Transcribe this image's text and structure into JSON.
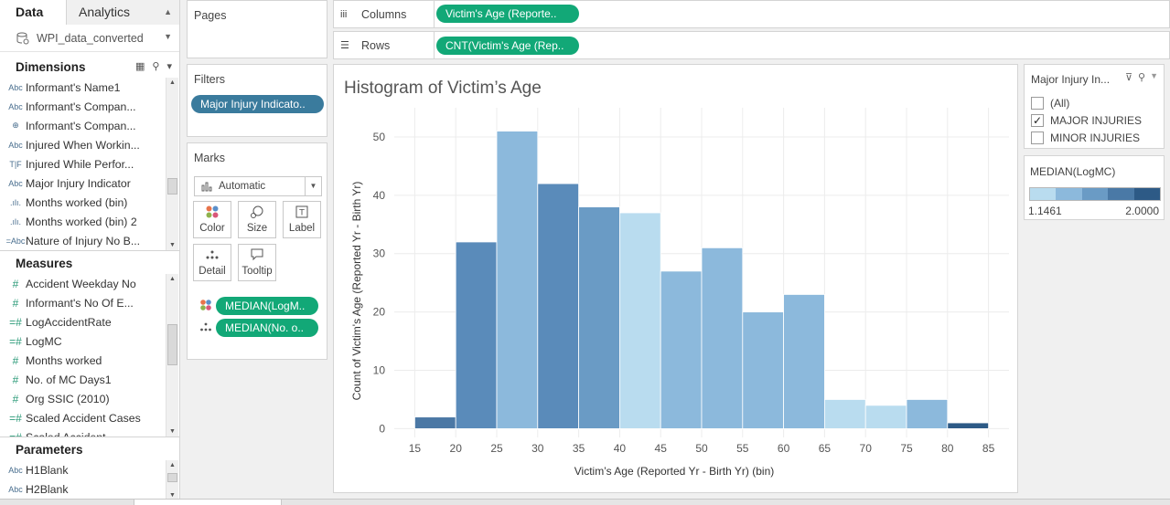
{
  "data_pane": {
    "tab_data": "Data",
    "tab_analytics": "Analytics",
    "datasource": "WPI_data_converted",
    "dimensions_header": "Dimensions",
    "dimensions": [
      {
        "type": "Abc",
        "label": "Informant's  Name1"
      },
      {
        "type": "Abc",
        "label": "Informant's Compan..."
      },
      {
        "type": "globe",
        "label": "Informant's Compan..."
      },
      {
        "type": "Abc",
        "label": "Injured When Workin..."
      },
      {
        "type": "T|F",
        "label": "Injured While Perfor..."
      },
      {
        "type": "Abc",
        "label": "Major Injury Indicator"
      },
      {
        "type": "bin",
        "label": "Months worked (bin)"
      },
      {
        "type": "bin",
        "label": "Months worked (bin) 2"
      },
      {
        "type": "=Abc",
        "label": "Nature of Injury No B..."
      }
    ],
    "measures_header": "Measures",
    "measures": [
      {
        "type": "#",
        "label": "Accident Weekday No"
      },
      {
        "type": "#",
        "label": "Informant's No Of E..."
      },
      {
        "type": "=#",
        "label": "LogAccidentRate"
      },
      {
        "type": "=#",
        "label": "LogMC"
      },
      {
        "type": "#",
        "label": "Months worked"
      },
      {
        "type": "#",
        "label": "No. of MC Days1"
      },
      {
        "type": "#",
        "label": "Org SSIC (2010)"
      },
      {
        "type": "=#",
        "label": "Scaled Accident Cases"
      },
      {
        "type": "=#",
        "label": "Scaled Accident..."
      }
    ],
    "parameters_header": "Parameters",
    "parameters": [
      {
        "type": "Abc",
        "label": "H1Blank"
      },
      {
        "type": "Abc",
        "label": "H2Blank"
      }
    ]
  },
  "pages": {
    "title": "Pages"
  },
  "filters": {
    "title": "Filters",
    "pill": "Major Injury Indicato.."
  },
  "marks": {
    "title": "Marks",
    "type": "Automatic",
    "buttons": {
      "color": "Color",
      "size": "Size",
      "label": "Label",
      "detail": "Detail",
      "tooltip": "Tooltip"
    },
    "pill_color": "MEDIAN(LogM..",
    "pill_detail": "MEDIAN(No. o.."
  },
  "columns": {
    "label": "Columns",
    "pill": "Victim's Age (Reporte.."
  },
  "rows": {
    "label": "Rows",
    "pill": "CNT(Victim's Age (Rep.."
  },
  "filter_card": {
    "title": "Major Injury In...",
    "options": [
      {
        "label": "(All)",
        "checked": false
      },
      {
        "label": "MAJOR INJURIES",
        "checked": true
      },
      {
        "label": "MINOR INJURIES",
        "checked": false
      }
    ]
  },
  "legend_card": {
    "title": "MEDIAN(LogMC)",
    "min_label": "1.1461",
    "max_label": "2.0000",
    "colors": [
      "#b9dcef",
      "#8cb9dc",
      "#6a9bc5",
      "#4a79a6",
      "#2d5a86"
    ]
  },
  "chart_data": {
    "type": "bar",
    "title": "Histogram of Victim’s Age",
    "xlabel": "Victim’s Age (Reported Yr - Birth Yr) (bin)",
    "ylabel": "Count of Victim's Age (Reported Yr - Birth Yr)",
    "x_ticks": [
      "15",
      "20",
      "25",
      "30",
      "35",
      "40",
      "45",
      "50",
      "55",
      "60",
      "65",
      "70",
      "75",
      "80",
      "85"
    ],
    "y_ticks": [
      "0",
      "10",
      "20",
      "30",
      "40",
      "50"
    ],
    "xlim": [
      12.5,
      87.5
    ],
    "ylim": [
      -1.5,
      55
    ],
    "bin_width": 5,
    "grid": true,
    "bins": [
      {
        "start": 15,
        "count": 2,
        "color": "#4b78a5"
      },
      {
        "start": 20,
        "count": 32,
        "color": "#5a8bba"
      },
      {
        "start": 25,
        "count": 51,
        "color": "#8cb9dc"
      },
      {
        "start": 30,
        "count": 42,
        "color": "#5a8bba"
      },
      {
        "start": 35,
        "count": 38,
        "color": "#6a9bc5"
      },
      {
        "start": 40,
        "count": 37,
        "color": "#b9dcef"
      },
      {
        "start": 45,
        "count": 27,
        "color": "#8cb9dc"
      },
      {
        "start": 50,
        "count": 31,
        "color": "#8cb9dc"
      },
      {
        "start": 55,
        "count": 20,
        "color": "#8cb9dc"
      },
      {
        "start": 60,
        "count": 23,
        "color": "#8cb9dc"
      },
      {
        "start": 65,
        "count": 5,
        "color": "#b9dcef"
      },
      {
        "start": 70,
        "count": 4,
        "color": "#b9dcef"
      },
      {
        "start": 75,
        "count": 5,
        "color": "#8cb9dc"
      },
      {
        "start": 80,
        "count": 1,
        "color": "#2d5a86"
      }
    ]
  }
}
